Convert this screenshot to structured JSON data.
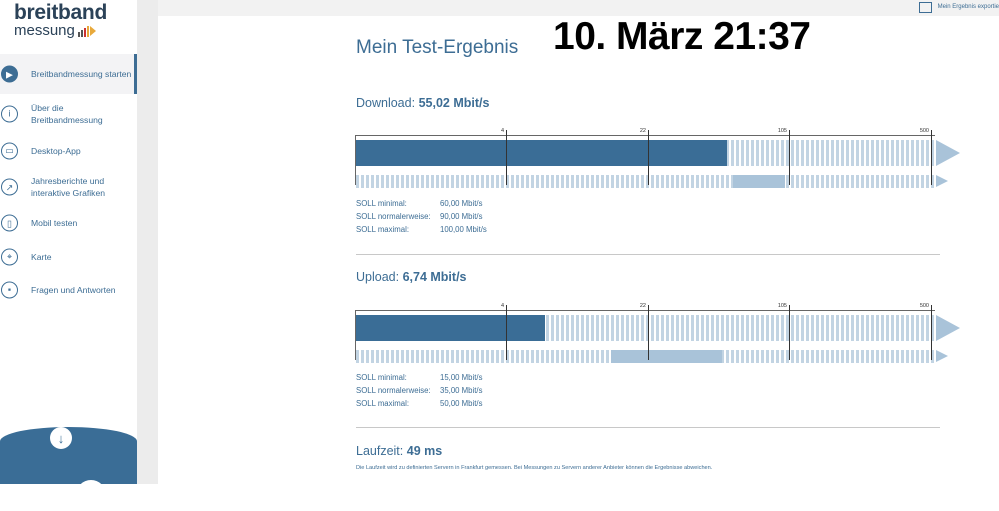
{
  "logo": {
    "line1": "breitband",
    "line2": "messung"
  },
  "sidebar": {
    "items": [
      {
        "label": "Breitbandmessung starten",
        "icon": "play-icon",
        "active": true
      },
      {
        "label": "Über die Breitbandmessung",
        "icon": "info-icon",
        "active": false
      },
      {
        "label": "Desktop-App",
        "icon": "monitor-icon",
        "active": false
      },
      {
        "label": "Jahresberichte und interaktive Grafiken",
        "icon": "chart-icon",
        "active": false
      },
      {
        "label": "Mobil testen",
        "icon": "mobile-icon",
        "active": false
      },
      {
        "label": "Karte",
        "icon": "map-pin-icon",
        "active": false
      },
      {
        "label": "Fragen und Antworten",
        "icon": "chat-icon",
        "active": false
      }
    ]
  },
  "topbar": {
    "export_label": "Mein Ergebnis exportie"
  },
  "page": {
    "title": "Mein Test-Ergebnis",
    "timestamp": "10. März 21:37"
  },
  "scale": {
    "labels": [
      "4",
      "22",
      "105",
      "500"
    ]
  },
  "download": {
    "label": "Download:",
    "value": "55,02 Mbit/s",
    "fill_fraction": 0.64,
    "range_fraction": [
      0.65,
      0.74
    ],
    "soll": [
      {
        "label": "SOLL minimal:",
        "value": "60,00 Mbit/s"
      },
      {
        "label": "SOLL normalerweise:",
        "value": "90,00 Mbit/s"
      },
      {
        "label": "SOLL maximal:",
        "value": "100,00 Mbit/s"
      }
    ]
  },
  "upload": {
    "label": "Upload:",
    "value": "6,74 Mbit/s",
    "fill_fraction": 0.326,
    "range_fraction": [
      0.439,
      0.631
    ],
    "soll": [
      {
        "label": "SOLL minimal:",
        "value": "15,00 Mbit/s"
      },
      {
        "label": "SOLL normalerweise:",
        "value": "35,00 Mbit/s"
      },
      {
        "label": "SOLL maximal:",
        "value": "50,00 Mbit/s"
      }
    ]
  },
  "latency": {
    "label": "Laufzeit:",
    "value": "49 ms",
    "note": "Die Laufzeit wird zu definierten Servern in Frankfurt gemessen. Bei Messungen zu Servern anderer Anbieter können die Ergebnisse abweichen."
  },
  "colors": {
    "accent": "#3a6d96",
    "light": "#a9c3d9",
    "stripe": "#c2d4e3"
  }
}
